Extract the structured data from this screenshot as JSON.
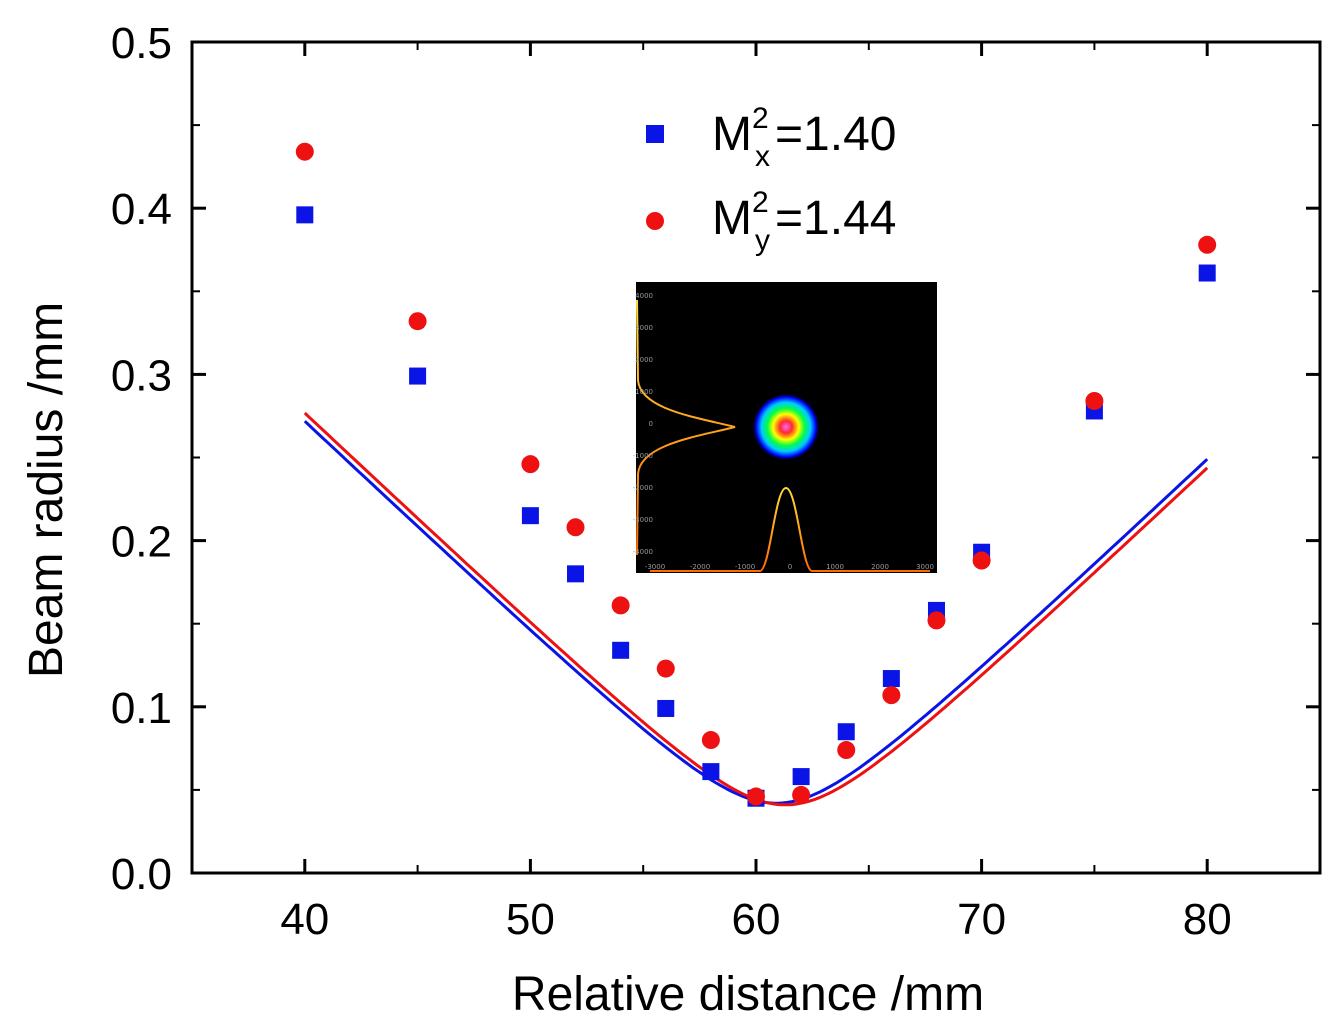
{
  "chart_data": {
    "type": "scatter",
    "title": "",
    "xlabel": "Relative distance /mm",
    "ylabel": "Beam radius /mm",
    "xlim": [
      35,
      85
    ],
    "ylim": [
      0.0,
      0.5
    ],
    "xticks": [
      "40",
      "50",
      "60",
      "70",
      "80"
    ],
    "xtick_values": [
      40,
      50,
      60,
      70,
      80
    ],
    "yticks": [
      "0.0",
      "0.1",
      "0.2",
      "0.3",
      "0.4",
      "0.5"
    ],
    "ytick_values": [
      0.0,
      0.1,
      0.2,
      0.3,
      0.4,
      0.5
    ],
    "legend_position": "top-center",
    "grid": false,
    "series": [
      {
        "name": "M_x^2=1.40",
        "legend": {
          "main": "M",
          "sup": "2",
          "sub": "x",
          "rest": "=1.40"
        },
        "marker": "square",
        "color": "#0a14e6",
        "x": [
          40,
          45,
          50,
          52,
          54,
          56,
          58,
          60,
          62,
          64,
          66,
          68,
          70,
          75,
          80
        ],
        "y": [
          0.396,
          0.299,
          0.215,
          0.18,
          0.134,
          0.099,
          0.061,
          0.045,
          0.058,
          0.085,
          0.117,
          0.158,
          0.193,
          0.278,
          0.361
        ],
        "fit": {
          "w0": 0.042,
          "z0": 60.9,
          "zR_scale": 0.1285
        }
      },
      {
        "name": "M_y^2=1.44",
        "legend": {
          "main": "M",
          "sup": "2",
          "sub": "y",
          "rest": "=1.44"
        },
        "marker": "circle",
        "color": "#ee1111",
        "x": [
          40,
          45,
          50,
          52,
          54,
          56,
          58,
          60,
          62,
          64,
          66,
          68,
          70,
          75,
          80
        ],
        "y": [
          0.434,
          0.332,
          0.246,
          0.208,
          0.161,
          0.123,
          0.08,
          0.046,
          0.047,
          0.074,
          0.107,
          0.152,
          0.188,
          0.284,
          0.378
        ],
        "fit": {
          "w0": 0.041,
          "z0": 61.3,
          "zR_scale": 0.1285
        }
      }
    ],
    "inset": {
      "description_label": "beam profile",
      "x_ticks": [
        "-3000",
        "-2000",
        "-1000",
        "0",
        "1000",
        "2000",
        "3000"
      ],
      "y_ticks": [
        "4000",
        "3000",
        "2000",
        "1000",
        "0",
        "-1000",
        "-2000",
        "-3000",
        "-4000"
      ]
    }
  }
}
